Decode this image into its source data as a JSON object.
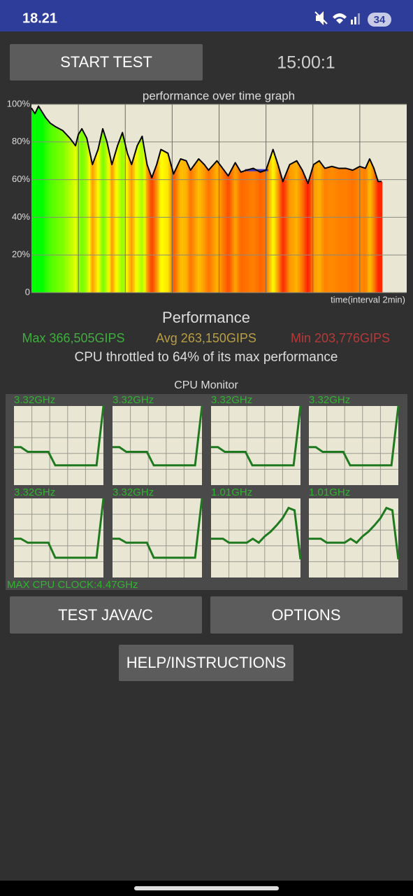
{
  "status_bar": {
    "time": "18.21",
    "battery": "34"
  },
  "buttons": {
    "start": "START TEST",
    "test_java": "TEST JAVA/C",
    "options": "OPTIONS",
    "help": "HELP/INSTRUCTIONS"
  },
  "timer": "15:00:1",
  "performance_graph": {
    "type": "line",
    "title": "performance over time graph",
    "x_label": "time(interval 2min)",
    "xlim": [
      0,
      16
    ],
    "xticks": [
      2,
      4,
      6,
      8,
      10,
      12,
      14
    ],
    "ylim": [
      0,
      100
    ],
    "yticks": [
      0,
      {
        "value": 20,
        "label": "20%"
      },
      {
        "value": 40,
        "label": "40%"
      },
      {
        "value": 60,
        "label": "60%"
      },
      {
        "value": 80,
        "label": "80%"
      },
      {
        "value": 100,
        "label": "100%"
      }
    ],
    "color": "#000000",
    "x": [
      0,
      0.15,
      0.3,
      0.45,
      0.6,
      0.8,
      1.04,
      1.34,
      1.64,
      1.88,
      2.0,
      2.15,
      2.36,
      2.6,
      2.84,
      3.04,
      3.22,
      3.43,
      3.67,
      3.88,
      4.09,
      4.27,
      4.51,
      4.72,
      4.93,
      5.13,
      5.34,
      5.52,
      5.82,
      6.06,
      6.36,
      6.6,
      6.78,
      7.13,
      7.37,
      7.55,
      7.91,
      8.15,
      8.39,
      8.69,
      8.93,
      9.16,
      9.46,
      9.76,
      10.0,
      10.3,
      10.51,
      10.72,
      11.01,
      11.31,
      11.55,
      11.79,
      12.03,
      12.27,
      12.51,
      12.81,
      13.1,
      13.4,
      13.7,
      14.0,
      14.24,
      14.42,
      14.6,
      14.78,
      14.93
    ],
    "values": [
      98,
      95,
      99,
      96,
      93,
      90,
      88,
      86,
      82,
      78,
      84,
      87,
      82,
      68,
      76,
      87,
      80,
      68,
      78,
      85,
      74,
      68,
      78,
      83,
      68,
      61,
      68,
      76,
      74,
      63,
      71,
      70,
      65,
      71,
      68,
      65,
      70,
      66,
      62,
      69,
      64,
      65,
      66,
      64,
      65,
      76,
      68,
      59,
      68,
      70,
      65,
      58,
      68,
      70,
      66,
      67,
      66,
      66,
      65,
      67,
      66,
      71,
      66,
      59,
      59
    ],
    "reference_line": {
      "color": "#3a3ac8",
      "x": [
        9.1,
        10.1
      ],
      "values": [
        65,
        65
      ]
    }
  },
  "performance": {
    "title": "Performance",
    "max": "Max 366,505GIPS",
    "avg": "Avg 263,150GIPS",
    "min": "Min 203,776GIPS",
    "throttle": "CPU throttled to 64% of its max performance"
  },
  "cpu_monitor": {
    "title": "CPU Monitor",
    "max_clock": "MAX CPU CLOCK:4.47GHz",
    "ylim": [
      0,
      100
    ],
    "color": "#1f7a1f",
    "cores": [
      {
        "label": "3.32GHz",
        "values": [
          48,
          48,
          42,
          42,
          42,
          42,
          25,
          25,
          25,
          25,
          25,
          25,
          25,
          100
        ]
      },
      {
        "label": "3.32GHz",
        "values": [
          48,
          48,
          42,
          42,
          42,
          42,
          25,
          25,
          25,
          25,
          25,
          25,
          25,
          100
        ]
      },
      {
        "label": "3.32GHz",
        "values": [
          48,
          48,
          42,
          42,
          42,
          42,
          25,
          25,
          25,
          25,
          25,
          25,
          25,
          100
        ]
      },
      {
        "label": "3.32GHz",
        "values": [
          48,
          48,
          42,
          42,
          42,
          42,
          25,
          25,
          25,
          25,
          25,
          25,
          25,
          100
        ]
      },
      {
        "label": "3.32GHz",
        "values": [
          49,
          49,
          44,
          44,
          44,
          44,
          25,
          25,
          25,
          25,
          25,
          25,
          25,
          100
        ]
      },
      {
        "label": "3.32GHz",
        "values": [
          49,
          49,
          44,
          44,
          44,
          44,
          25,
          25,
          25,
          25,
          25,
          25,
          25,
          100
        ]
      },
      {
        "label": "1.01GHz",
        "values": [
          49,
          49,
          49,
          44,
          44,
          44,
          44,
          49,
          44,
          52,
          58,
          66,
          75,
          88,
          85,
          23
        ]
      },
      {
        "label": "1.01GHz",
        "values": [
          49,
          49,
          49,
          44,
          44,
          44,
          44,
          49,
          44,
          52,
          58,
          66,
          75,
          88,
          85,
          23
        ]
      }
    ]
  }
}
